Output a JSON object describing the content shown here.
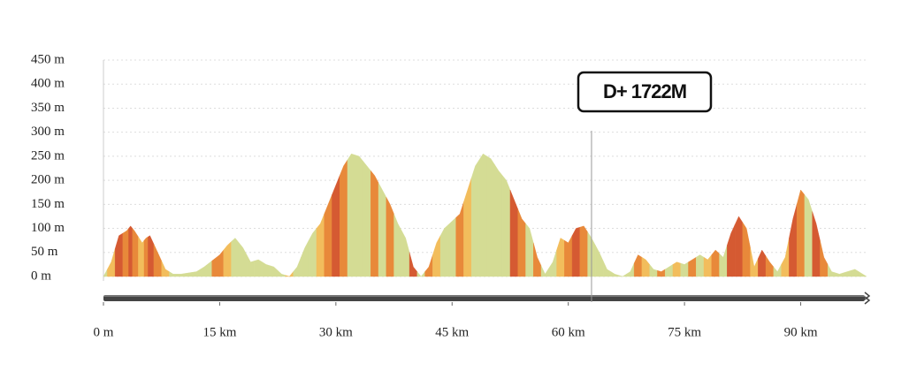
{
  "chart_data": {
    "type": "elevation-area",
    "x": [
      0,
      1,
      2,
      3,
      3.5,
      4,
      5,
      5.5,
      6,
      7,
      8,
      9,
      10,
      12,
      13,
      15,
      16,
      17,
      18,
      19,
      20,
      21,
      22,
      23,
      24,
      25,
      26,
      27,
      28,
      29,
      30,
      31,
      32,
      33,
      34,
      35,
      36,
      37,
      38,
      39,
      40,
      41,
      42,
      43,
      44,
      45,
      46,
      47,
      48,
      49,
      50,
      51,
      52,
      53,
      54,
      55,
      56,
      57,
      58,
      59,
      60,
      61,
      62,
      63,
      64,
      65,
      66,
      67,
      68,
      69,
      70,
      71,
      72,
      73,
      74,
      75,
      76,
      77,
      78,
      79,
      80,
      81,
      82,
      83,
      84,
      85,
      86,
      87,
      88,
      89,
      90,
      91,
      92,
      93,
      94,
      95,
      96,
      97,
      98,
      98.5
    ],
    "values": [
      0,
      30,
      85,
      95,
      105,
      95,
      70,
      80,
      85,
      50,
      15,
      5,
      5,
      10,
      20,
      45,
      65,
      80,
      60,
      30,
      35,
      25,
      20,
      5,
      0,
      20,
      60,
      90,
      110,
      150,
      190,
      230,
      255,
      250,
      230,
      210,
      180,
      150,
      110,
      80,
      20,
      0,
      20,
      70,
      100,
      115,
      130,
      180,
      230,
      255,
      245,
      220,
      200,
      160,
      120,
      100,
      40,
      5,
      30,
      80,
      70,
      100,
      105,
      80,
      50,
      15,
      5,
      0,
      10,
      45,
      35,
      15,
      10,
      20,
      30,
      25,
      35,
      45,
      35,
      55,
      40,
      90,
      125,
      100,
      20,
      55,
      30,
      10,
      40,
      120,
      180,
      160,
      110,
      40,
      10,
      5,
      10,
      15,
      5,
      0
    ],
    "colors": [
      "#d4dc94",
      "#f2bd5c",
      "#d55a32",
      "#e8893a",
      "#d55a32",
      "#e8893a",
      "#f2bd5c",
      "#e8893a",
      "#d55a32",
      "#e8893a",
      "#f2bd5c",
      "#d4dc94",
      "#d4dc94",
      "#d4dc94",
      "#d4dc94",
      "#e8893a",
      "#f2bd5c",
      "#d4dc94",
      "#d4dc94",
      "#d4dc94",
      "#d4dc94",
      "#d4dc94",
      "#d4dc94",
      "#d4dc94",
      "#f2bd5c",
      "#d4dc94",
      "#d4dc94",
      "#d4dc94",
      "#f2bd5c",
      "#e8893a",
      "#d55a32",
      "#e8893a",
      "#d4dc94",
      "#d4dc94",
      "#d4dc94",
      "#e8893a",
      "#d4dc94",
      "#e8893a",
      "#d4dc94",
      "#d4dc94",
      "#d55a32",
      "#d4dc94",
      "#e8893a",
      "#f2bd5c",
      "#d4dc94",
      "#d4dc94",
      "#e8893a",
      "#f2bd5c",
      "#d4dc94",
      "#d4dc94",
      "#d4dc94",
      "#d4dc94",
      "#d4dc94",
      "#d55a32",
      "#e8893a",
      "#d4dc94",
      "#e8893a",
      "#d4dc94",
      "#d4dc94",
      "#f2bd5c",
      "#e8893a",
      "#d55a32",
      "#e8893a",
      "#d4dc94",
      "#d4dc94",
      "#d4dc94",
      "#d4dc94",
      "#d4dc94",
      "#d4dc94",
      "#e8893a",
      "#f2bd5c",
      "#d4dc94",
      "#e8893a",
      "#d4dc94",
      "#f2bd5c",
      "#d4dc94",
      "#e8893a",
      "#d4dc94",
      "#f2bd5c",
      "#e8893a",
      "#d4dc94",
      "#d55a32",
      "#d55a32",
      "#e8893a",
      "#f2bd5c",
      "#d55a32",
      "#e8893a",
      "#d4dc94",
      "#f2bd5c",
      "#d55a32",
      "#e8893a",
      "#d4dc94",
      "#d55a32",
      "#e8893a",
      "#d4dc94",
      "#d4dc94",
      "#d4dc94",
      "#d4dc94",
      "#d4dc94",
      "#d4dc94"
    ],
    "xlim": [
      0,
      98.5
    ],
    "ylim": [
      0,
      450
    ],
    "xticks": [
      {
        "value": 0,
        "label": "0 m"
      },
      {
        "value": 15,
        "label": "15 km"
      },
      {
        "value": 30,
        "label": "30 km"
      },
      {
        "value": 45,
        "label": "45 km"
      },
      {
        "value": 60,
        "label": "60 km"
      },
      {
        "value": 75,
        "label": "75 km"
      },
      {
        "value": 90,
        "label": "90 km"
      }
    ],
    "yticks": [
      {
        "value": 0,
        "label": "0 m"
      },
      {
        "value": 50,
        "label": "50 m"
      },
      {
        "value": 100,
        "label": "100 m"
      },
      {
        "value": 150,
        "label": "150 m"
      },
      {
        "value": 200,
        "label": "200 m"
      },
      {
        "value": 250,
        "label": "250 m"
      },
      {
        "value": 300,
        "label": "300 m"
      },
      {
        "value": 350,
        "label": "350 m"
      },
      {
        "value": 400,
        "label": "400 m"
      },
      {
        "value": 450,
        "label": "450 m"
      }
    ],
    "grid": true,
    "annotation": {
      "text": "D+ 1722M",
      "x": 63
    }
  }
}
